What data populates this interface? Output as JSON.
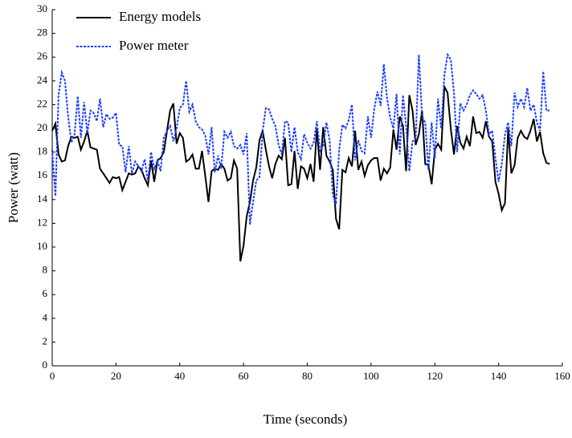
{
  "chart_data": {
    "type": "line",
    "xlabel": "Time (seconds)",
    "ylabel": "Power (watt)",
    "xlim": [
      0,
      160
    ],
    "xticks": [
      0,
      20,
      40,
      60,
      80,
      100,
      120,
      140,
      160
    ],
    "ylim": [
      0,
      30
    ],
    "yticks": [
      0,
      2,
      4,
      6,
      8,
      10,
      12,
      14,
      16,
      18,
      20,
      22,
      24,
      26,
      28,
      30
    ],
    "legend": "upper-left",
    "x": [
      0,
      1,
      2,
      3,
      4,
      5,
      6,
      7,
      8,
      9,
      10,
      11,
      12,
      13,
      14,
      15,
      16,
      17,
      18,
      19,
      20,
      21,
      22,
      23,
      24,
      25,
      26,
      27,
      28,
      29,
      30,
      31,
      32,
      33,
      34,
      35,
      36,
      37,
      38,
      39,
      40,
      41,
      42,
      43,
      44,
      45,
      46,
      47,
      48,
      49,
      50,
      51,
      52,
      53,
      54,
      55,
      56,
      57,
      58,
      59,
      60,
      61,
      62,
      63,
      64,
      65,
      66,
      67,
      68,
      69,
      70,
      71,
      72,
      73,
      74,
      75,
      76,
      77,
      78,
      79,
      80,
      81,
      82,
      83,
      84,
      85,
      86,
      87,
      88,
      89,
      90,
      91,
      92,
      93,
      94,
      95,
      96,
      97,
      98,
      99,
      100,
      101,
      102,
      103,
      104,
      105,
      106,
      107,
      108,
      109,
      110,
      111,
      112,
      113,
      114,
      115,
      116,
      117,
      118,
      119,
      120,
      121,
      122,
      123,
      124,
      125,
      126,
      127,
      128,
      129,
      130,
      131,
      132,
      133,
      134,
      135,
      136,
      137,
      138,
      139,
      140,
      141,
      142,
      143,
      144,
      145,
      146,
      147,
      148,
      149,
      150,
      151,
      152,
      153,
      154,
      155,
      156
    ],
    "series": [
      {
        "name": "Energy models",
        "color": "#000000",
        "dash": false,
        "values": [
          19.8,
          20.4,
          17.8,
          17.2,
          17.3,
          18.5,
          19.3,
          19.2,
          19.3,
          18.2,
          18.9,
          19.8,
          18.4,
          18.3,
          18.2,
          16.6,
          16.2,
          15.8,
          15.4,
          15.9,
          15.8,
          15.9,
          14.8,
          15.5,
          16.2,
          16.1,
          16.2,
          16.8,
          16.5,
          15.8,
          15.2,
          17.3,
          15.5,
          17.3,
          17.5,
          18.0,
          19.8,
          21.5,
          22.1,
          18.7,
          19.6,
          19.2,
          17.2,
          17.4,
          17.8,
          16.6,
          16.6,
          18.1,
          16.0,
          13.8,
          16.4,
          16.6,
          16.5,
          17.0,
          16.6,
          15.6,
          15.8,
          17.3,
          16.6,
          8.8,
          10.1,
          12.6,
          13.8,
          15.6,
          16.7,
          19.0,
          19.8,
          18.2,
          16.8,
          15.8,
          17.0,
          17.7,
          17.4,
          19.2,
          15.2,
          15.3,
          18.1,
          14.9,
          16.8,
          16.6,
          15.8,
          17.0,
          15.5,
          20.0,
          16.5,
          20.1,
          17.7,
          17.2,
          16.5,
          12.4,
          11.5,
          16.5,
          16.3,
          17.5,
          16.8,
          19.8,
          16.5,
          17.2,
          16.0,
          16.9,
          17.3,
          17.5,
          17.5,
          15.6,
          16.6,
          16.2,
          16.7,
          19.9,
          18.2,
          21.0,
          20.2,
          16.4,
          22.8,
          21.5,
          18.6,
          19.5,
          21.5,
          17.0,
          16.9,
          15.3,
          18.2,
          18.7,
          18.2,
          23.5,
          23.0,
          20.0,
          17.8,
          20.2,
          18.8,
          18.3,
          19.3,
          18.5,
          21.0,
          19.6,
          19.7,
          19.2,
          20.6,
          19.3,
          18.9,
          15.5,
          14.5,
          13.1,
          13.7,
          20.0,
          16.2,
          16.9,
          19.2,
          19.8,
          19.3,
          19.1,
          19.8,
          20.8,
          18.9,
          19.7,
          17.9,
          17.1,
          17.0
        ]
      },
      {
        "name": "Power meter",
        "color": "#1f3fff",
        "dash": true,
        "values": [
          18.2,
          14.3,
          22.8,
          24.7,
          24.0,
          21.0,
          18.8,
          19.5,
          22.7,
          19.2,
          22.2,
          19.6,
          21.5,
          21.3,
          20.6,
          22.5,
          20.1,
          21.2,
          20.8,
          20.9,
          21.3,
          18.6,
          18.5,
          16.3,
          18.5,
          16.2,
          17.2,
          16.8,
          16.4,
          17.4,
          15.6,
          18.0,
          16.6,
          17.3,
          16.4,
          19.2,
          19.8,
          20.2,
          18.9,
          20.0,
          21.7,
          22.0,
          24.0,
          21.4,
          22.0,
          20.6,
          20.1,
          19.9,
          19.4,
          17.8,
          20.1,
          16.3,
          17.7,
          16.6,
          19.7,
          19.2,
          19.7,
          18.5,
          18.3,
          18.6,
          17.8,
          19.6,
          11.9,
          13.8,
          15.6,
          15.9,
          19.8,
          21.7,
          21.6,
          20.8,
          20.2,
          18.6,
          17.8,
          20.6,
          20.5,
          18.0,
          20.1,
          18.0,
          17.4,
          19.5,
          18.8,
          18.3,
          18.8,
          20.6,
          18.1,
          18.5,
          20.5,
          19.0,
          14.4,
          13.6,
          18.2,
          20.3,
          20.0,
          20.7,
          22.0,
          17.3,
          19.0,
          18.1,
          17.9,
          21.0,
          19.2,
          21.6,
          23.1,
          21.9,
          25.4,
          22.6,
          20.9,
          20.0,
          22.9,
          17.8,
          22.8,
          20.2,
          16.4,
          18.9,
          19.1,
          26.2,
          21.0,
          20.5,
          16.5,
          20.5,
          17.5,
          22.5,
          20.0,
          24.5,
          26.2,
          25.8,
          23.0,
          18.0,
          22.1,
          21.5,
          22.0,
          22.8,
          23.2,
          22.9,
          22.5,
          22.8,
          21.5,
          19.5,
          19.8,
          17.5,
          15.5,
          17.0,
          19.5,
          20.5,
          18.5,
          23.0,
          21.8,
          22.5,
          21.8,
          23.4,
          21.5,
          22.0,
          20.5,
          19.8,
          24.8,
          21.5,
          21.5
        ]
      }
    ]
  }
}
